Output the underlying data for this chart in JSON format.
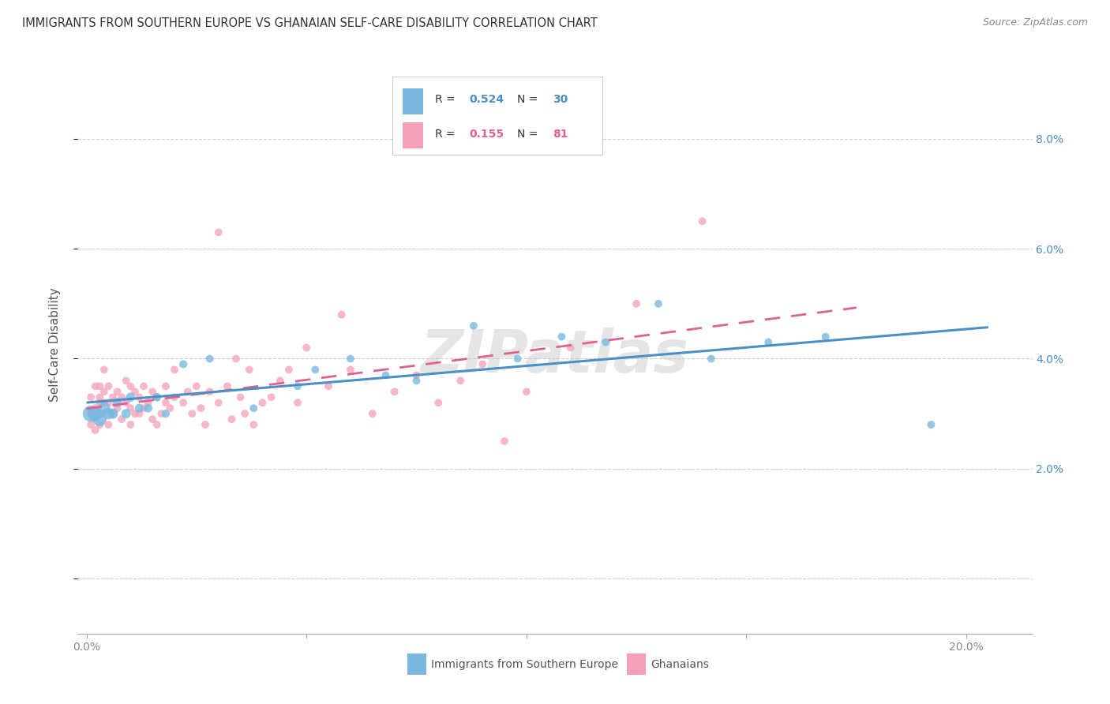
{
  "title": "IMMIGRANTS FROM SOUTHERN EUROPE VS GHANAIAN SELF-CARE DISABILITY CORRELATION CHART",
  "source": "Source: ZipAtlas.com",
  "ylabel": "Self-Care Disability",
  "x_ticks": [
    0.0,
    0.05,
    0.1,
    0.15,
    0.2
  ],
  "x_tick_labels": [
    "0.0%",
    "",
    "",
    "",
    "20.0%"
  ],
  "y_ticks": [
    0.0,
    0.02,
    0.04,
    0.06,
    0.08
  ],
  "y_tick_labels_right": [
    "",
    "2.0%",
    "4.0%",
    "6.0%",
    "8.0%"
  ],
  "xlim": [
    -0.002,
    0.215
  ],
  "ylim": [
    -0.01,
    0.095
  ],
  "legend_label1": "Immigrants from Southern Europe",
  "legend_label2": "Ghanaians",
  "R1": 0.524,
  "N1": 30,
  "R2": 0.155,
  "N2": 81,
  "color_blue": "#7ab8e0",
  "color_pink": "#f4a0b8",
  "color_blue_line": "#4a90c4",
  "color_pink_line": "#e06090",
  "color_blue_text": "#4a90c4",
  "color_pink_text": "#e06090",
  "background_color": "#ffffff",
  "watermark": "ZIPatlas",
  "blue_scatter_x": [
    0.001,
    0.002,
    0.003,
    0.004,
    0.005,
    0.006,
    0.007,
    0.009,
    0.01,
    0.012,
    0.014,
    0.016,
    0.018,
    0.022,
    0.028,
    0.038,
    0.048,
    0.052,
    0.06,
    0.068,
    0.075,
    0.088,
    0.098,
    0.108,
    0.118,
    0.13,
    0.142,
    0.155,
    0.168,
    0.192
  ],
  "blue_scatter_y": [
    0.03,
    0.03,
    0.029,
    0.031,
    0.03,
    0.03,
    0.032,
    0.03,
    0.033,
    0.031,
    0.031,
    0.033,
    0.03,
    0.039,
    0.04,
    0.031,
    0.035,
    0.038,
    0.04,
    0.037,
    0.036,
    0.046,
    0.04,
    0.044,
    0.043,
    0.05,
    0.04,
    0.043,
    0.044,
    0.028
  ],
  "blue_scatter_size": [
    220,
    190,
    160,
    130,
    110,
    90,
    75,
    75,
    70,
    65,
    60,
    60,
    55,
    55,
    50,
    50,
    50,
    50,
    50,
    50,
    50,
    50,
    50,
    50,
    50,
    50,
    50,
    50,
    50,
    50
  ],
  "pink_scatter_x": [
    0.001,
    0.001,
    0.001,
    0.002,
    0.002,
    0.002,
    0.003,
    0.003,
    0.003,
    0.003,
    0.004,
    0.004,
    0.004,
    0.004,
    0.005,
    0.005,
    0.005,
    0.006,
    0.006,
    0.007,
    0.007,
    0.008,
    0.008,
    0.009,
    0.009,
    0.01,
    0.01,
    0.01,
    0.011,
    0.011,
    0.012,
    0.012,
    0.013,
    0.013,
    0.014,
    0.015,
    0.015,
    0.016,
    0.016,
    0.017,
    0.018,
    0.018,
    0.019,
    0.02,
    0.02,
    0.022,
    0.023,
    0.024,
    0.025,
    0.026,
    0.027,
    0.028,
    0.03,
    0.032,
    0.033,
    0.034,
    0.035,
    0.036,
    0.037,
    0.038,
    0.04,
    0.042,
    0.044,
    0.046,
    0.048,
    0.05,
    0.055,
    0.058,
    0.06,
    0.065,
    0.07,
    0.075,
    0.08,
    0.085,
    0.09,
    0.095,
    0.1,
    0.11,
    0.125,
    0.14,
    0.03
  ],
  "pink_scatter_y": [
    0.028,
    0.03,
    0.033,
    0.027,
    0.031,
    0.035,
    0.028,
    0.032,
    0.035,
    0.033,
    0.03,
    0.032,
    0.034,
    0.038,
    0.028,
    0.032,
    0.035,
    0.03,
    0.033,
    0.031,
    0.034,
    0.029,
    0.033,
    0.032,
    0.036,
    0.028,
    0.031,
    0.035,
    0.03,
    0.034,
    0.03,
    0.033,
    0.031,
    0.035,
    0.032,
    0.029,
    0.034,
    0.028,
    0.033,
    0.03,
    0.032,
    0.035,
    0.031,
    0.033,
    0.038,
    0.032,
    0.034,
    0.03,
    0.035,
    0.031,
    0.028,
    0.034,
    0.032,
    0.035,
    0.029,
    0.04,
    0.033,
    0.03,
    0.038,
    0.028,
    0.032,
    0.033,
    0.036,
    0.038,
    0.032,
    0.042,
    0.035,
    0.048,
    0.038,
    0.03,
    0.034,
    0.037,
    0.032,
    0.036,
    0.039,
    0.025,
    0.034,
    0.042,
    0.05,
    0.065,
    0.063
  ],
  "pink_scatter_size": [
    50,
    50,
    50,
    50,
    50,
    50,
    50,
    50,
    50,
    50,
    50,
    50,
    50,
    50,
    50,
    50,
    50,
    50,
    50,
    50,
    50,
    50,
    50,
    50,
    50,
    50,
    50,
    50,
    50,
    50,
    50,
    50,
    50,
    50,
    50,
    50,
    50,
    50,
    50,
    50,
    50,
    50,
    50,
    50,
    50,
    50,
    50,
    50,
    50,
    50,
    50,
    50,
    50,
    50,
    50,
    50,
    50,
    50,
    50,
    50,
    50,
    50,
    50,
    50,
    50,
    50,
    50,
    50,
    50,
    50,
    50,
    50,
    50,
    50,
    50,
    50,
    50,
    50,
    50,
    50,
    50
  ]
}
